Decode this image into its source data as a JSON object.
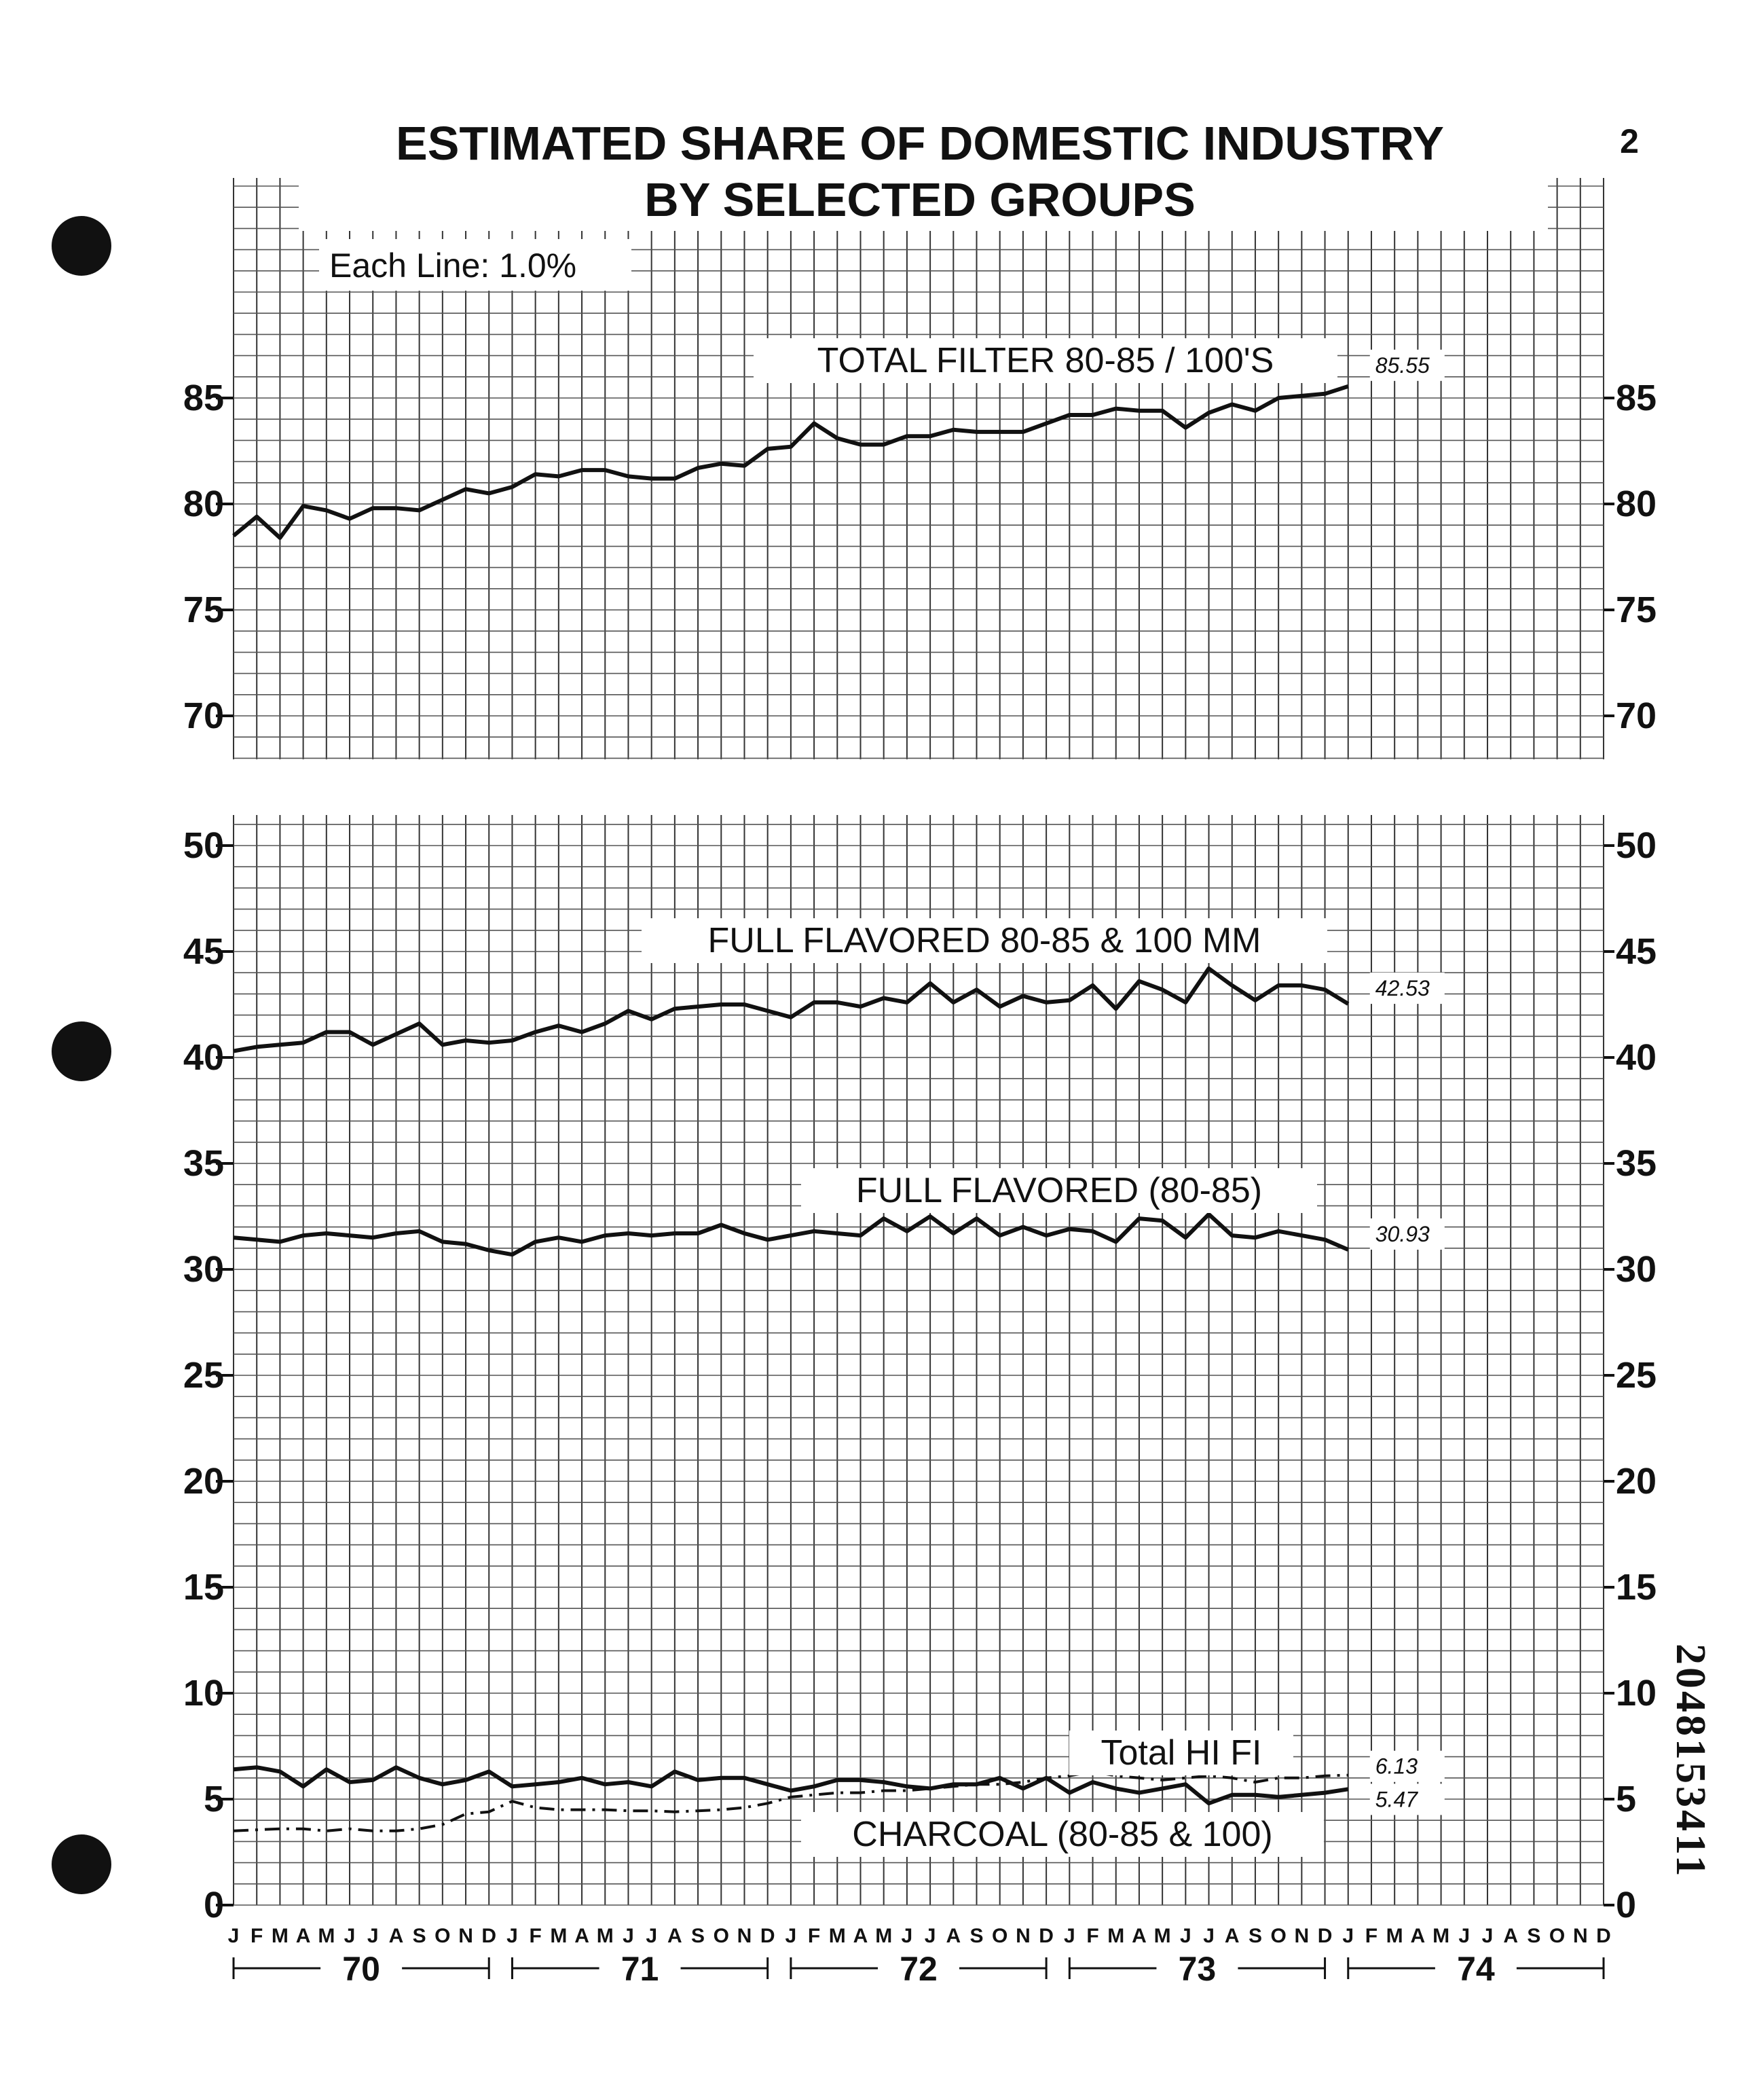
{
  "page_number": "2",
  "doc_id": "2048153411",
  "chart_data": {
    "type": "line",
    "title": "ESTIMATED SHARE OF DOMESTIC INDUSTRY",
    "subtitle": "BY SELECTED GROUPS",
    "note": "Each Line: 1.0%",
    "months": [
      "J",
      "F",
      "M",
      "A",
      "M",
      "J",
      "J",
      "A",
      "S",
      "O",
      "N",
      "D"
    ],
    "years": [
      "70",
      "71",
      "72",
      "73",
      "74"
    ],
    "panels": [
      {
        "name": "top",
        "ylim": [
          68,
          95
        ],
        "yticks": [
          70,
          75,
          80,
          85
        ],
        "ytick_labels": [
          "70",
          "75",
          "80",
          "85"
        ],
        "series": [
          {
            "name": "TOTAL FILTER 80-85 / 100'S",
            "end_label": "85.55",
            "style": "solid",
            "values": [
              78.5,
              79.4,
              78.4,
              79.9,
              79.7,
              79.3,
              79.8,
              79.8,
              79.7,
              80.2,
              80.7,
              80.5,
              80.8,
              81.4,
              81.3,
              81.6,
              81.6,
              81.3,
              81.2,
              81.2,
              81.7,
              81.9,
              81.8,
              82.6,
              82.7,
              83.8,
              83.1,
              82.8,
              82.8,
              83.2,
              83.2,
              83.5,
              83.4,
              83.4,
              83.4,
              83.8,
              84.2,
              84.2,
              84.5,
              84.4,
              84.4,
              83.6,
              84.3,
              84.7,
              84.4,
              85.0,
              85.1,
              85.2,
              85.55
            ]
          }
        ]
      },
      {
        "name": "bottom",
        "ylim": [
          0,
          51
        ],
        "yticks": [
          0,
          5,
          10,
          15,
          20,
          25,
          30,
          35,
          40,
          45,
          50
        ],
        "ytick_labels": [
          "0",
          "5",
          "10",
          "15",
          "20",
          "25",
          "30",
          "35",
          "40",
          "45",
          "50"
        ],
        "series": [
          {
            "name": "FULL FLAVORED 80-85 & 100 MM",
            "end_label": "42.53",
            "style": "solid",
            "values": [
              40.3,
              40.5,
              40.6,
              40.7,
              41.2,
              41.2,
              40.6,
              41.1,
              41.6,
              40.6,
              40.8,
              40.7,
              40.8,
              41.2,
              41.5,
              41.2,
              41.6,
              42.2,
              41.8,
              42.3,
              42.4,
              42.5,
              42.5,
              42.2,
              41.9,
              42.6,
              42.6,
              42.4,
              42.8,
              42.6,
              43.5,
              42.6,
              43.2,
              42.4,
              42.9,
              42.6,
              42.7,
              43.4,
              42.3,
              43.6,
              43.2,
              42.6,
              44.2,
              43.4,
              42.7,
              43.4,
              43.4,
              43.2,
              42.53
            ]
          },
          {
            "name": "FULL FLAVORED (80-85)",
            "end_label": "30.93",
            "style": "solid",
            "values": [
              31.5,
              31.4,
              31.3,
              31.6,
              31.7,
              31.6,
              31.5,
              31.7,
              31.8,
              31.3,
              31.2,
              30.9,
              30.7,
              31.3,
              31.5,
              31.3,
              31.6,
              31.7,
              31.6,
              31.7,
              31.7,
              32.1,
              31.7,
              31.4,
              31.6,
              31.8,
              31.7,
              31.6,
              32.4,
              31.8,
              32.5,
              31.7,
              32.4,
              31.6,
              32.0,
              31.6,
              31.9,
              31.8,
              31.3,
              32.4,
              32.3,
              31.5,
              32.6,
              31.6,
              31.5,
              31.8,
              31.6,
              31.4,
              30.93
            ]
          },
          {
            "name": "Total HI FI",
            "end_label": "6.13",
            "style": "dash-dot",
            "values": [
              3.5,
              3.55,
              3.6,
              3.6,
              3.5,
              3.6,
              3.5,
              3.5,
              3.6,
              3.8,
              4.3,
              4.4,
              4.9,
              4.6,
              4.5,
              4.5,
              4.5,
              4.45,
              4.45,
              4.4,
              4.45,
              4.5,
              4.6,
              4.8,
              5.1,
              5.2,
              5.3,
              5.3,
              5.4,
              5.4,
              5.5,
              5.6,
              5.7,
              5.7,
              5.8,
              6.0,
              6.1,
              6.3,
              6.1,
              6.0,
              5.9,
              6.0,
              6.1,
              6.0,
              5.8,
              6.0,
              6.0,
              6.1,
              6.13
            ]
          },
          {
            "name": "CHARCOAL (80-85 & 100)",
            "end_label": "5.47",
            "style": "solid",
            "values": [
              6.4,
              6.5,
              6.3,
              5.6,
              6.4,
              5.8,
              5.9,
              6.5,
              6.0,
              5.7,
              5.9,
              6.3,
              5.6,
              5.7,
              5.8,
              6.0,
              5.7,
              5.8,
              5.6,
              6.3,
              5.9,
              6.0,
              6.0,
              5.7,
              5.4,
              5.6,
              5.9,
              5.9,
              5.8,
              5.6,
              5.5,
              5.7,
              5.7,
              6.0,
              5.5,
              6.0,
              5.3,
              5.8,
              5.5,
              5.3,
              5.5,
              5.7,
              4.8,
              5.2,
              5.2,
              5.1,
              5.2,
              5.3,
              5.47
            ]
          }
        ]
      }
    ],
    "grid": true
  }
}
